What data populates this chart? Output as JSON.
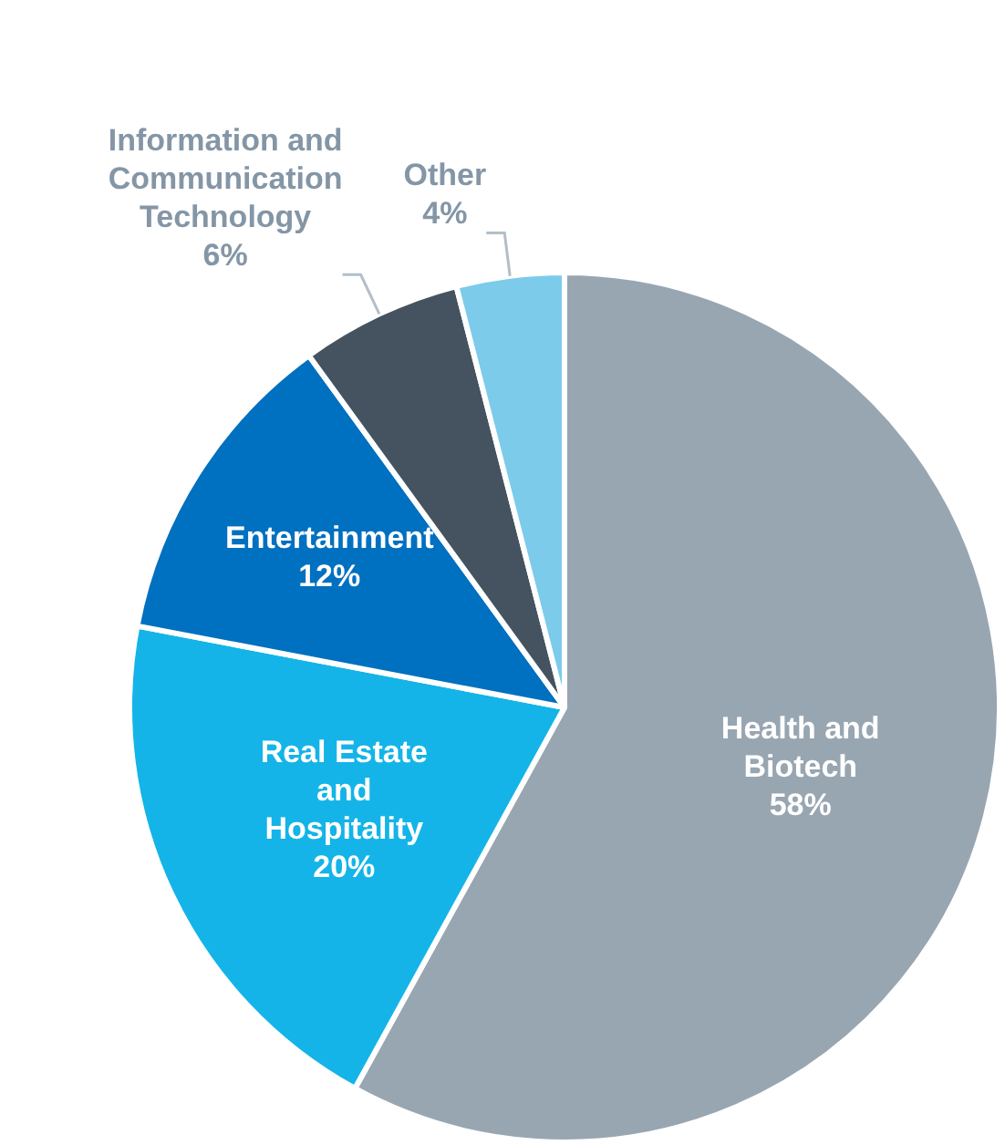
{
  "chart_data": {
    "type": "pie",
    "categories": [
      "Health and Biotech",
      "Real Estate and Hospitality",
      "Entertainment",
      "Information and Communication Technology",
      "Other"
    ],
    "values": [
      58,
      20,
      12,
      6,
      4
    ],
    "value_labels": [
      "58%",
      "20%",
      "12%",
      "6%",
      "4%"
    ],
    "colors": [
      "#98a6b2",
      "#14b4e8",
      "#0070c0",
      "#44535f",
      "#7ccbea"
    ],
    "legend": false
  }
}
